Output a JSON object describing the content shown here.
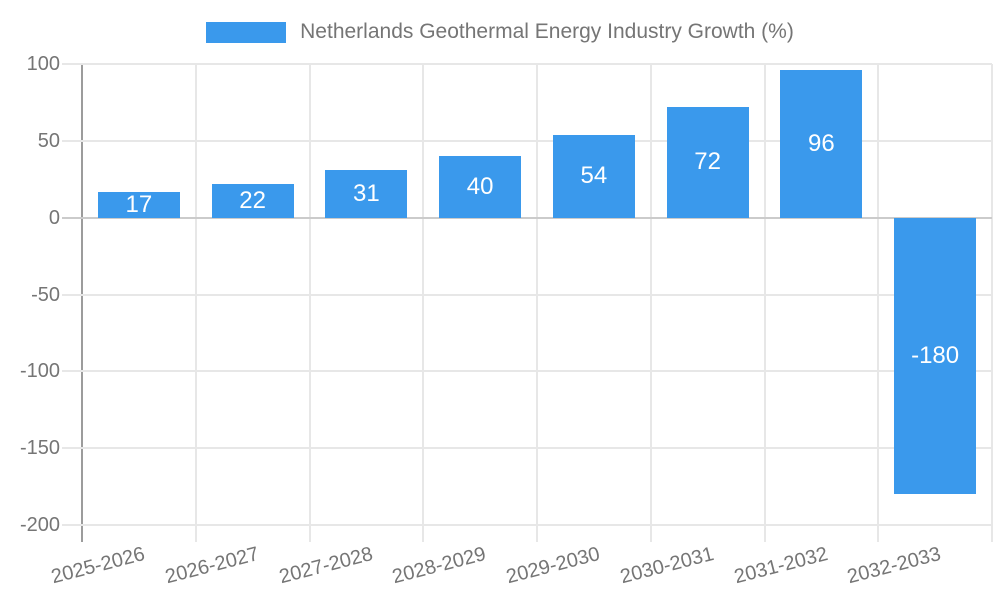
{
  "legend": {
    "label": "Netherlands Geothermal Energy Industry Growth (%)"
  },
  "chart_data": {
    "type": "bar",
    "title": "Netherlands Geothermal Energy Industry Growth (%)",
    "categories": [
      "2025-2026",
      "2026-2027",
      "2027-2028",
      "2028-2029",
      "2029-2030",
      "2030-2031",
      "2031-2032",
      "2032-2033"
    ],
    "values": [
      17,
      22,
      31,
      40,
      54,
      72,
      96,
      -180
    ],
    "bar_value_labels": [
      "17",
      "22",
      "31",
      "40",
      "54",
      "72",
      "96",
      "-180"
    ],
    "yticks": [
      100,
      50,
      0,
      -50,
      -100,
      -150,
      -200
    ],
    "ytick_labels": [
      "100",
      "50",
      "0",
      "-50",
      "-100",
      "-150",
      "-200"
    ],
    "ylim": [
      -200,
      100
    ],
    "xlabel": "",
    "ylabel": "",
    "grid": true,
    "legend_position": "top",
    "xtick_rotation_deg": -14.5,
    "colors": {
      "bar": "#3A99EC",
      "bar_label_text": "#FFFFFF",
      "axis_text": "#757575",
      "gridline": "#E7E7E7",
      "zero_line": "#CBCBCB",
      "axis_line": "#9C9C9C",
      "background": "#FFFFFF"
    }
  }
}
